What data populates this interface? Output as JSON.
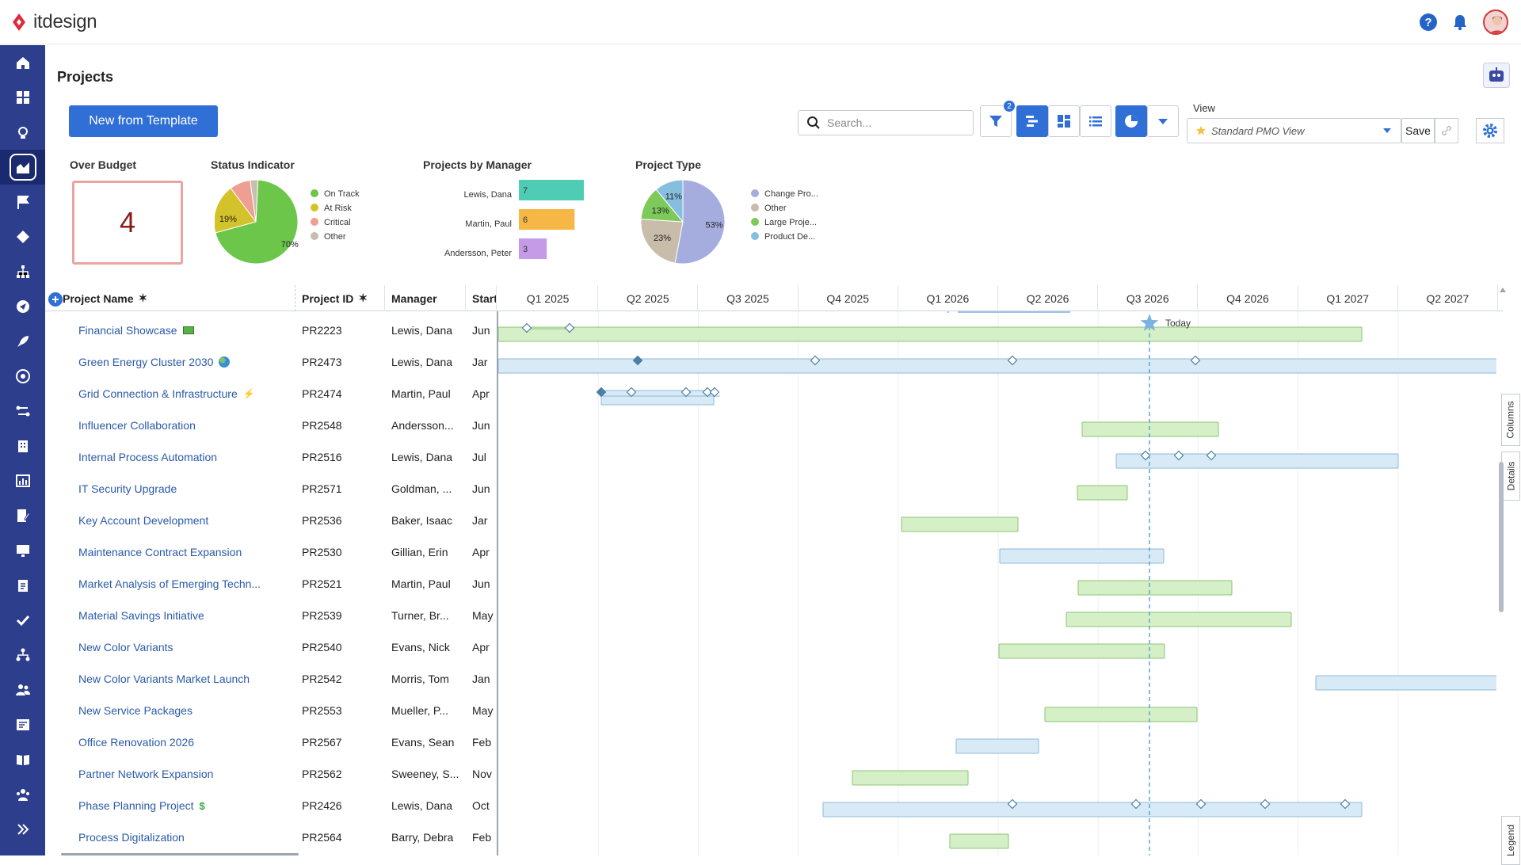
{
  "app": {
    "name": "itdesign",
    "accent": "#2f6fd6",
    "sidebar_color": "#2d3e8c"
  },
  "header": {
    "help_label": "?"
  },
  "page": {
    "title": "Projects"
  },
  "toolbar": {
    "new_template_label": "New from Template",
    "search_placeholder": "Search...",
    "filter_count": "2",
    "view_label": "View",
    "view_value": "Standard PMO View",
    "save_label": "Save"
  },
  "widgets": {
    "over_budget": {
      "title": "Over Budget",
      "value": "4"
    },
    "status": {
      "title": "Status Indicator",
      "legend": [
        "On Track",
        "At Risk",
        "Critical",
        "Other"
      ],
      "labels": [
        "70%",
        "19%"
      ],
      "values": [
        70,
        19,
        8,
        3
      ],
      "colors": [
        "#6cc64a",
        "#d4c22a",
        "#ef9e92",
        "#c8bfb0"
      ]
    },
    "manager": {
      "title": "Projects by Manager",
      "items": [
        {
          "name": "Lewis, Dana",
          "value": 7,
          "label": "7",
          "color": "#4ecdb4"
        },
        {
          "name": "Martin, Paul",
          "value": 6,
          "label": "6",
          "color": "#f6b747"
        },
        {
          "name": "Andersson, Peter",
          "value": 3,
          "label": "3",
          "color": "#c59be8"
        }
      ]
    },
    "type": {
      "title": "Project Type",
      "legend": [
        "Change Pro...",
        "Other",
        "Large Proje...",
        "Product De..."
      ],
      "labels": [
        "53%",
        "23%",
        "13%",
        "11%"
      ],
      "values": [
        53,
        23,
        13,
        11
      ],
      "colors": [
        "#a5addf",
        "#c8bcaa",
        "#7dc95a",
        "#86bedf"
      ]
    }
  },
  "table": {
    "columns": [
      "Project Name",
      "Project ID",
      "Manager",
      "Start"
    ],
    "quarters": [
      "Q1 2025",
      "Q2 2025",
      "Q3 2025",
      "Q4 2025",
      "Q1 2026",
      "Q2 2026",
      "Q3 2026",
      "Q4 2026",
      "Q1 2027",
      "Q2 2027"
    ],
    "today_label": "Today",
    "rows": [
      {
        "name": "Financial Showcase",
        "id": "PR2223",
        "manager": "Lewis, Dana",
        "start": "Jun",
        "icon": "money-icon"
      },
      {
        "name": "Green Energy Cluster 2030",
        "id": "PR2473",
        "manager": "Lewis, Dana",
        "start": "Jar",
        "icon": "globe-icon"
      },
      {
        "name": "Grid Connection & Infrastructure",
        "id": "PR2474",
        "manager": "Martin, Paul",
        "start": "Apr",
        "icon": "lightning-icon"
      },
      {
        "name": "Influencer Collaboration",
        "id": "PR2548",
        "manager": "Andersson...",
        "start": "Jun",
        "icon": ""
      },
      {
        "name": "Internal Process Automation",
        "id": "PR2516",
        "manager": "Lewis, Dana",
        "start": "Jul",
        "icon": ""
      },
      {
        "name": "IT Security Upgrade",
        "id": "PR2571",
        "manager": "Goldman, ...",
        "start": "Jun",
        "icon": ""
      },
      {
        "name": "Key Account Development",
        "id": "PR2536",
        "manager": "Baker, Isaac",
        "start": "Jar",
        "icon": ""
      },
      {
        "name": "Maintenance Contract Expansion",
        "id": "PR2530",
        "manager": "Gillian, Erin",
        "start": "Apr",
        "icon": ""
      },
      {
        "name": "Market Analysis of Emerging Techn...",
        "id": "PR2521",
        "manager": "Martin, Paul",
        "start": "Jun",
        "icon": ""
      },
      {
        "name": "Material Savings Initiative",
        "id": "PR2539",
        "manager": "Turner, Br...",
        "start": "May",
        "icon": ""
      },
      {
        "name": "New Color Variants",
        "id": "PR2540",
        "manager": "Evans, Nick",
        "start": "Apr",
        "icon": ""
      },
      {
        "name": "New Color Variants Market Launch",
        "id": "PR2542",
        "manager": "Morris, Tom",
        "start": "Jan",
        "icon": ""
      },
      {
        "name": "New Service Packages",
        "id": "PR2553",
        "manager": "Mueller, P...",
        "start": "May",
        "icon": ""
      },
      {
        "name": "Office Renovation 2026",
        "id": "PR2567",
        "manager": "Evans, Sean",
        "start": "Feb",
        "icon": ""
      },
      {
        "name": "Partner Network Expansion",
        "id": "PR2562",
        "manager": "Sweeney, S...",
        "start": "Nov",
        "icon": ""
      },
      {
        "name": "Phase Planning Project",
        "id": "PR2426",
        "manager": "Lewis, Dana",
        "start": "Oct",
        "icon": "dollar-icon"
      },
      {
        "name": "Process Digitalization",
        "id": "PR2564",
        "manager": "Barry, Debra",
        "start": "Feb",
        "icon": ""
      }
    ]
  },
  "side_tabs": [
    "Columns",
    "Details",
    "Legend"
  ]
}
